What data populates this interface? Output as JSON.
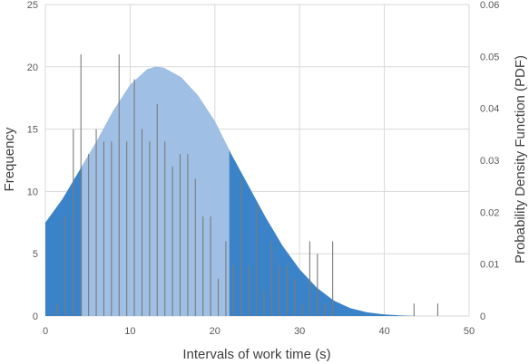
{
  "chart_data": {
    "type": "bar",
    "title": "",
    "xlabel": "Intervals of work time (s)",
    "ylabel": "Frequency",
    "y2label": "Probability Density Function (PDF)",
    "xlim": [
      0,
      50
    ],
    "ylim": [
      0,
      25
    ],
    "y2lim": [
      0,
      0.06
    ],
    "xticks": [
      "0",
      "10",
      "20",
      "30",
      "40",
      "50"
    ],
    "yticks": [
      "0",
      "5",
      "10",
      "15",
      "20",
      "25"
    ],
    "y2ticks": [
      "0",
      "0.01",
      "0.02",
      "0.03",
      "0.04",
      "0.05",
      "0.06"
    ],
    "grid": true,
    "series": [
      {
        "kind": "bars",
        "axis": "left",
        "x": [
          1.4,
          2.4,
          3.3,
          4.2,
          5.1,
          6.0,
          6.9,
          7.8,
          8.7,
          9.6,
          10.5,
          11.4,
          12.3,
          13.2,
          14.1,
          15.0,
          15.9,
          16.8,
          17.7,
          18.6,
          19.5,
          20.4,
          21.3,
          22.2,
          23.1,
          24.0,
          24.9,
          25.8,
          26.7,
          27.6,
          28.5,
          29.4,
          30.3,
          31.2,
          32.1,
          33.0,
          33.9,
          43.5,
          46.3
        ],
        "values": [
          1,
          8,
          15,
          21,
          13,
          15,
          14,
          14,
          21,
          14,
          19,
          15,
          14,
          17,
          14,
          12,
          13,
          13,
          11,
          8,
          8,
          3,
          6,
          4,
          11,
          4,
          9,
          2,
          6,
          4,
          4,
          3,
          1,
          6,
          5,
          1,
          6,
          1,
          1
        ]
      },
      {
        "kind": "area",
        "axis": "right",
        "x": [
          0,
          2,
          4,
          6,
          8,
          10,
          12,
          13,
          14,
          16,
          18,
          20,
          22,
          24,
          26,
          28,
          30,
          32,
          34,
          36,
          38,
          40,
          42,
          44
        ],
        "values": [
          0.018,
          0.0225,
          0.028,
          0.0335,
          0.0395,
          0.0445,
          0.0475,
          0.048,
          0.0478,
          0.046,
          0.0425,
          0.0375,
          0.031,
          0.025,
          0.019,
          0.0135,
          0.009,
          0.0055,
          0.003,
          0.0015,
          0.0007,
          0.0003,
          0.0001,
          0.0
        ],
        "highlight_range": [
          4.3,
          21.7
        ],
        "colors": {
          "base": "#3b83c8",
          "highlight": "#9fbfe5"
        }
      }
    ]
  },
  "colors": {
    "bars": "#7a7a7a",
    "grid": "#d9d9d9"
  }
}
